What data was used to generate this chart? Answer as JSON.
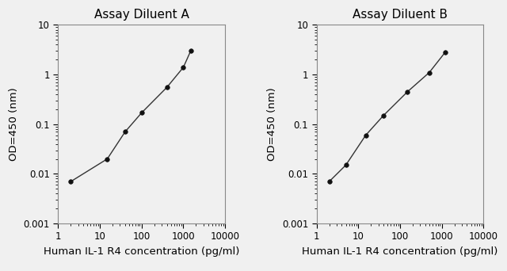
{
  "panel_A": {
    "title": "Assay Diluent A",
    "x_data": [
      2,
      15,
      40,
      100,
      400,
      1000,
      1500
    ],
    "y_data": [
      0.007,
      0.02,
      0.07,
      0.17,
      0.55,
      1.4,
      3.0
    ],
    "xlim": [
      1,
      10000
    ],
    "ylim": [
      0.001,
      10
    ],
    "xlabel": "Human IL-1 R4 concentration (pg/ml)",
    "ylabel": "OD=450 (nm)"
  },
  "panel_B": {
    "title": "Assay Diluent B",
    "x_data": [
      2,
      5,
      15,
      40,
      150,
      500,
      1200
    ],
    "y_data": [
      0.007,
      0.015,
      0.06,
      0.15,
      0.45,
      1.1,
      2.8
    ],
    "xlim": [
      1,
      10000
    ],
    "ylim": [
      0.001,
      10
    ],
    "xlabel": "Human IL-1 R4 concentration (pg/ml)",
    "ylabel": "OD=450 (nm)"
  },
  "line_color": "#333333",
  "marker_color": "#111111",
  "bg_color": "#f0f0f0",
  "title_fontsize": 11,
  "label_fontsize": 9.5,
  "tick_fontsize": 8.5,
  "yticks": [
    0.001,
    0.01,
    0.1,
    1,
    10
  ],
  "ytick_labels": [
    "0.001",
    "0.01",
    "0.1",
    "1",
    "10"
  ],
  "xticks": [
    1,
    10,
    100,
    1000,
    10000
  ],
  "xtick_labels": [
    "1",
    "10",
    "100",
    "1000",
    "10000"
  ]
}
